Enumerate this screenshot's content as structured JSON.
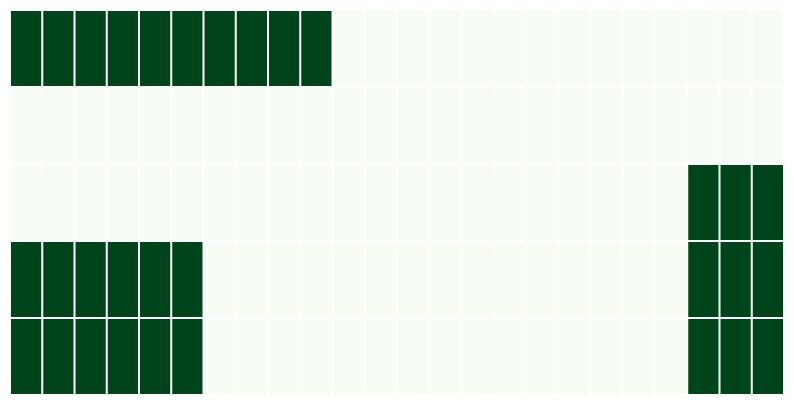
{
  "chart_data": {
    "type": "heatmap",
    "colors": {
      "high": "#00441b",
      "low": "#f7fcf5",
      "grid": "#ffffff"
    },
    "grid": true,
    "z": [
      [
        1,
        1,
        1,
        1,
        1,
        1,
        1,
        1,
        1,
        1,
        0,
        0,
        0,
        0,
        0,
        0,
        0,
        0,
        0,
        0,
        0,
        0,
        0,
        0
      ],
      [
        0,
        0,
        0,
        0,
        0,
        0,
        0,
        0,
        0,
        0,
        0,
        0,
        0,
        0,
        0,
        0,
        0,
        0,
        0,
        0,
        0,
        0,
        0,
        0
      ],
      [
        0,
        0,
        0,
        0,
        0,
        0,
        0,
        0,
        0,
        0,
        0,
        0,
        0,
        0,
        0,
        0,
        0,
        0,
        0,
        0,
        0,
        1,
        1,
        1
      ],
      [
        1,
        1,
        1,
        1,
        1,
        1,
        0,
        0,
        0,
        0,
        0,
        0,
        0,
        0,
        0,
        0,
        0,
        0,
        0,
        0,
        0,
        1,
        1,
        1
      ],
      [
        1,
        1,
        1,
        1,
        1,
        1,
        0,
        0,
        0,
        0,
        0,
        0,
        0,
        0,
        0,
        0,
        0,
        0,
        0,
        0,
        0,
        1,
        1,
        1
      ]
    ]
  }
}
